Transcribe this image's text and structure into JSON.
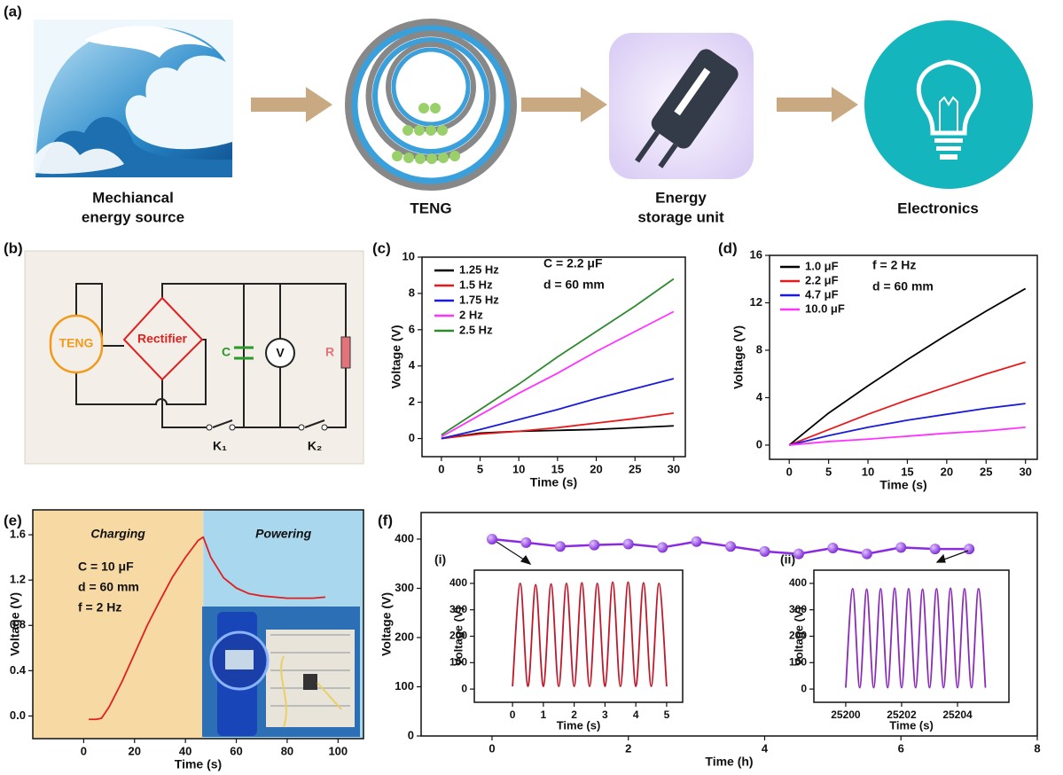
{
  "figure": {
    "panel_labels": [
      "(a)",
      "(b)",
      "(c)",
      "(d)",
      "(e)",
      "(f)"
    ],
    "stages": [
      {
        "label": [
          "Mechiancal",
          "energy source"
        ]
      },
      {
        "label": [
          "TENG"
        ]
      },
      {
        "label": [
          "Energy",
          "storage unit"
        ]
      },
      {
        "label": [
          "Electronics"
        ]
      }
    ],
    "circuit": {
      "source": "TENG",
      "rectifier": "Rectifier",
      "capacitor": "C",
      "voltmeter": "V",
      "resistor": "R",
      "switch1": "K₁",
      "switch2": "K₂"
    }
  },
  "chart_data": [
    {
      "type": "line",
      "x": [
        0,
        5,
        10,
        15,
        20,
        25,
        30
      ],
      "series": [
        {
          "name": "1.25 Hz",
          "color": "#000000",
          "values": [
            0,
            0.3,
            0.4,
            0.45,
            0.5,
            0.6,
            0.7
          ]
        },
        {
          "name": "1.5 Hz",
          "color": "#e8191b",
          "values": [
            0,
            0.25,
            0.4,
            0.6,
            0.85,
            1.1,
            1.4
          ]
        },
        {
          "name": "1.75 Hz",
          "color": "#1a1adb",
          "values": [
            0,
            0.5,
            1.05,
            1.6,
            2.2,
            2.75,
            3.3
          ]
        },
        {
          "name": "2 Hz",
          "color": "#ff33ff",
          "values": [
            0.1,
            1.3,
            2.5,
            3.6,
            4.8,
            5.9,
            7.0
          ]
        },
        {
          "name": "2.5 Hz",
          "color": "#2d8a2d",
          "values": [
            0.2,
            1.6,
            3.0,
            4.5,
            5.9,
            7.3,
            8.8
          ]
        }
      ],
      "xlim": [
        -2.5,
        31.5
      ],
      "ylim": [
        -1,
        10
      ],
      "xticks": [
        0,
        5,
        10,
        15,
        20,
        25,
        30
      ],
      "yticks": [
        0,
        2,
        4,
        6,
        8,
        10
      ],
      "xlabel": "Time (s)",
      "ylabel": "Voltage (V)",
      "legend": "upper left",
      "annotations": [
        "C = 2.2 μF",
        "d = 60 mm"
      ]
    },
    {
      "type": "line",
      "x": [
        0,
        5,
        10,
        15,
        20,
        25,
        30
      ],
      "series": [
        {
          "name": "1.0 μF",
          "color": "#000000",
          "values": [
            0,
            2.7,
            5.0,
            7.2,
            9.3,
            11.3,
            13.2
          ]
        },
        {
          "name": "2.2 μF",
          "color": "#e8191b",
          "values": [
            0,
            1.3,
            2.6,
            3.8,
            4.9,
            6.0,
            7.0
          ]
        },
        {
          "name": "4.7 μF",
          "color": "#1a1adb",
          "values": [
            0,
            0.8,
            1.5,
            2.1,
            2.6,
            3.1,
            3.5
          ]
        },
        {
          "name": "10.0 μF",
          "color": "#ff33ff",
          "values": [
            0,
            0.3,
            0.5,
            0.75,
            1.0,
            1.2,
            1.5
          ]
        }
      ],
      "xlim": [
        -2.5,
        31.5
      ],
      "ylim": [
        -1.2,
        16
      ],
      "xticks": [
        0,
        5,
        10,
        15,
        20,
        25,
        30
      ],
      "yticks": [
        0,
        4,
        8,
        12,
        16
      ],
      "xlabel": "Time (s)",
      "ylabel": "Voltage (V)",
      "legend": "upper left",
      "annotations": [
        "f = 2 Hz",
        "d = 60 mm"
      ]
    },
    {
      "type": "line",
      "x": [
        2,
        5,
        7,
        10,
        15,
        20,
        25,
        30,
        35,
        40,
        45,
        47,
        50,
        55,
        60,
        65,
        70,
        80,
        90,
        95
      ],
      "values": [
        -0.03,
        -0.03,
        -0.02,
        0.08,
        0.3,
        0.55,
        0.8,
        1.02,
        1.23,
        1.4,
        1.55,
        1.58,
        1.4,
        1.22,
        1.13,
        1.08,
        1.06,
        1.04,
        1.04,
        1.05
      ],
      "color": "#e02020",
      "regions": [
        {
          "label": "Charging",
          "range": [
            -20,
            47
          ],
          "color": "#f7d9a4"
        },
        {
          "label": "Powering",
          "range": [
            47,
            110
          ],
          "color": "#a9d8ee"
        }
      ],
      "xlim": [
        -20,
        110
      ],
      "ylim": [
        -0.2,
        1.82
      ],
      "xticks": [
        0,
        20,
        40,
        60,
        80,
        100
      ],
      "yticks": [
        {
          "value": 0,
          "label": "0.0"
        },
        0.4,
        0.8,
        1.2,
        1.6
      ],
      "xlabel": "Time (s)",
      "ylabel": "Voltage (V)",
      "annotations": [
        "C = 10 μF",
        "d = 60 mm",
        "f = 2 Hz"
      ]
    },
    {
      "type": "line",
      "markers": true,
      "x": [
        0,
        0.5,
        1,
        1.5,
        2,
        2.5,
        3,
        3.5,
        4,
        4.5,
        5,
        5.5,
        6,
        6.5,
        7
      ],
      "values": [
        400,
        393,
        385,
        388,
        390,
        383,
        395,
        385,
        375,
        370,
        382,
        370,
        383,
        380,
        380
      ],
      "color": "#8a2be2",
      "xlim": [
        -1.04,
        8
      ],
      "ylim": [
        0,
        454
      ],
      "xticks": [
        0,
        2,
        4,
        6,
        8
      ],
      "yticks": [
        0,
        100,
        200,
        300,
        400
      ],
      "xlabel": "Time (h)",
      "ylabel": "Voltage (V)"
    },
    {
      "type": "line",
      "smooth": true,
      "label": "(i)",
      "x": [
        0,
        0.25,
        0.5,
        0.75,
        1,
        1.25,
        1.5,
        1.75,
        2,
        2.25,
        2.5,
        2.75,
        3,
        3.25,
        3.5,
        3.75,
        4,
        4.25,
        4.5,
        4.75,
        5
      ],
      "values": [
        10,
        400,
        10,
        395,
        10,
        398,
        10,
        400,
        10,
        402,
        10,
        400,
        10,
        405,
        10,
        405,
        10,
        402,
        10,
        400,
        10
      ],
      "color": "#c0182a",
      "xlim": [
        -1.24,
        5.52
      ],
      "ylim": [
        -50,
        450
      ],
      "xticks": [
        0,
        1,
        2,
        3,
        4,
        5
      ],
      "yticks": [
        0,
        100,
        200,
        300,
        400
      ],
      "xlabel": "Time (s)",
      "ylabel": "Voltage (V)"
    },
    {
      "type": "line",
      "smooth": true,
      "label": "(ii)",
      "x": [
        25200,
        25200.25,
        25200.5,
        25200.75,
        25201,
        25201.25,
        25201.5,
        25201.75,
        25202,
        25202.25,
        25202.5,
        25202.75,
        25203,
        25203.25,
        25203.5,
        25203.75,
        25204,
        25204.25,
        25204.5,
        25204.75,
        25205
      ],
      "values": [
        5,
        380,
        5,
        378,
        5,
        380,
        5,
        382,
        5,
        380,
        5,
        378,
        5,
        380,
        5,
        382,
        5,
        380,
        5,
        380,
        5
      ],
      "color": "#8a2bb8",
      "xlim": [
        25198.86,
        25205.84
      ],
      "ylim": [
        -50,
        450
      ],
      "xticks": [
        25200,
        25202,
        25204
      ],
      "yticks": [
        0,
        100,
        200,
        300,
        400
      ],
      "xlabel": "Time (s)",
      "ylabel": "Voltage (V)"
    }
  ]
}
